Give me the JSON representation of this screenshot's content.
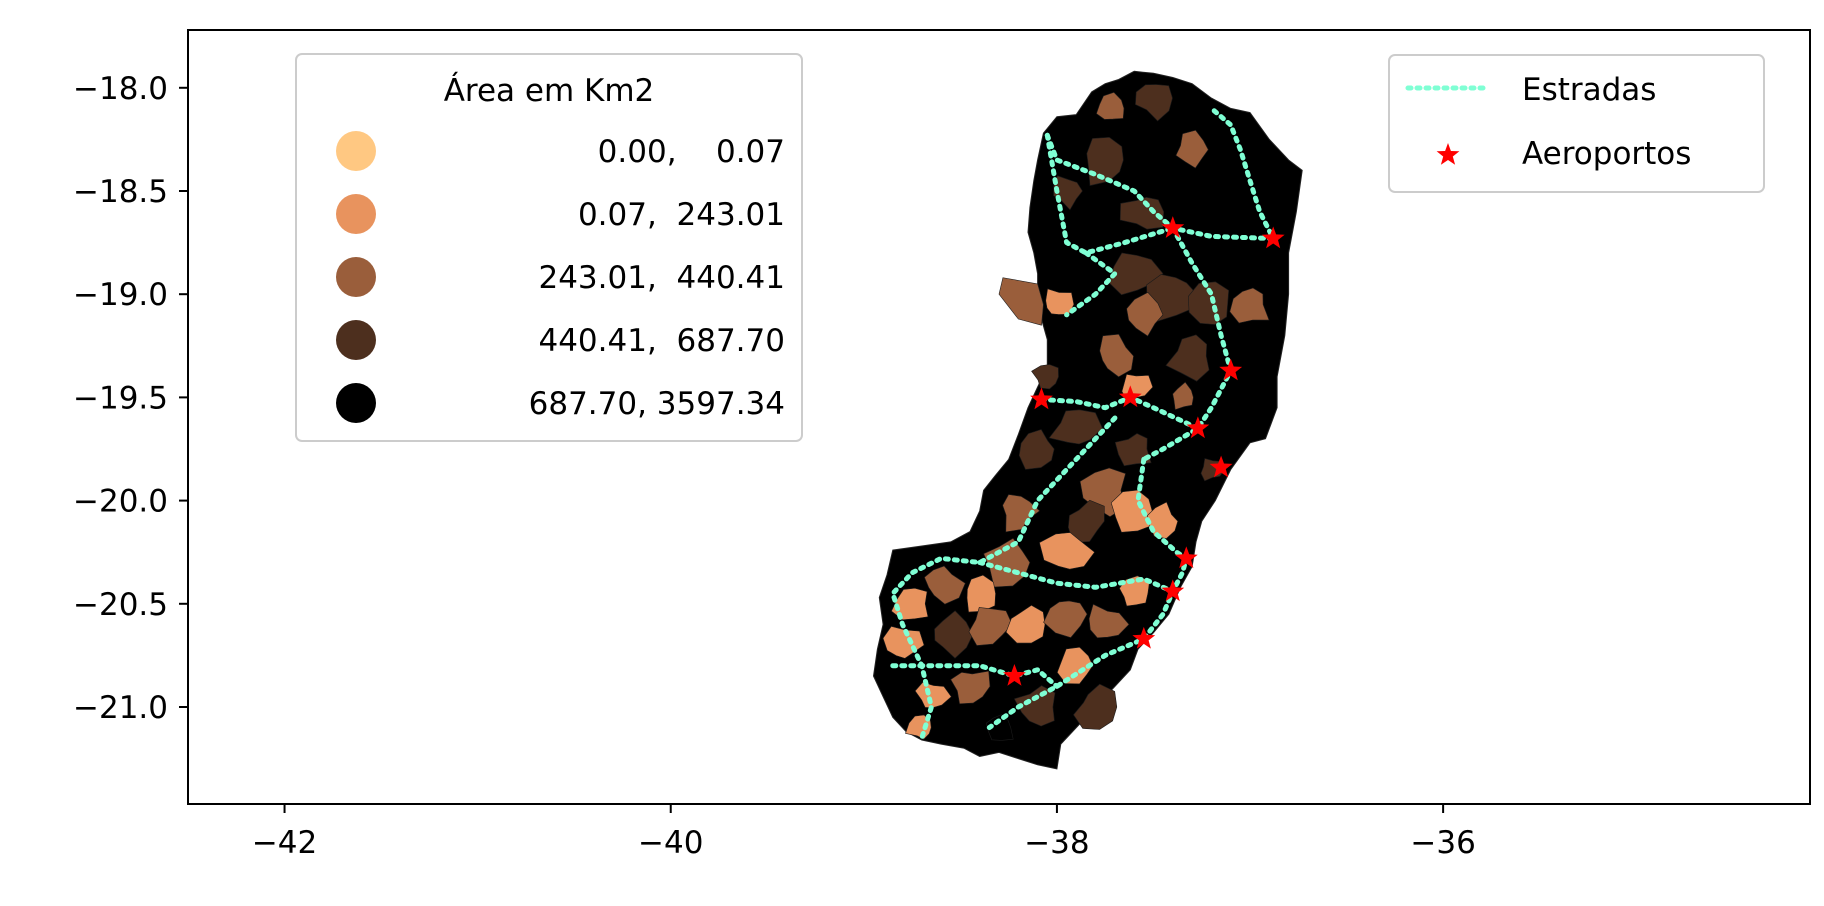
{
  "chart_data": {
    "type": "map",
    "title": "",
    "xlabel": "",
    "ylabel": "",
    "xlim": [
      -42.5,
      -34.1
    ],
    "ylim": [
      -21.47,
      -17.72
    ],
    "grid": false,
    "x_ticks": [
      {
        "value": -42,
        "label": "−42"
      },
      {
        "value": -40,
        "label": "−40"
      },
      {
        "value": -38,
        "label": "−38"
      },
      {
        "value": -36,
        "label": "−36"
      }
    ],
    "y_ticks": [
      {
        "value": -18.0,
        "label": "−18.0"
      },
      {
        "value": -18.5,
        "label": "−18.5"
      },
      {
        "value": -19.0,
        "label": "−19.0"
      },
      {
        "value": -19.5,
        "label": "−19.5"
      },
      {
        "value": -20.0,
        "label": "−20.0"
      },
      {
        "value": -20.5,
        "label": "−20.5"
      },
      {
        "value": -21.0,
        "label": "−21.0"
      }
    ],
    "choropleth_legend": {
      "title": "Área em Km2",
      "placement": "upper-left",
      "classes": [
        {
          "label": "0.00,    0.07",
          "color": "#ffc882"
        },
        {
          "label": "0.07,  243.01",
          "color": "#e8935e"
        },
        {
          "label": "243.01,  440.41",
          "color": "#9a5e3b"
        },
        {
          "label": "440.41,  687.70",
          "color": "#4d2f1e"
        },
        {
          "label": "687.70, 3597.34",
          "color": "#000000"
        }
      ]
    },
    "layers_legend": {
      "placement": "upper-right",
      "items": [
        {
          "label": "Estradas",
          "kind": "dotted-line",
          "color": "#7fffd4"
        },
        {
          "label": "Aeroportos",
          "kind": "star",
          "color": "#ff0000"
        }
      ]
    },
    "airports": [
      {
        "lon": -37.4,
        "lat": -18.68
      },
      {
        "lon": -36.88,
        "lat": -18.73
      },
      {
        "lon": -37.1,
        "lat": -19.37
      },
      {
        "lon": -37.62,
        "lat": -19.5
      },
      {
        "lon": -38.08,
        "lat": -19.51
      },
      {
        "lon": -37.27,
        "lat": -19.65
      },
      {
        "lon": -37.15,
        "lat": -19.84
      },
      {
        "lon": -37.33,
        "lat": -20.28
      },
      {
        "lon": -37.4,
        "lat": -20.44
      },
      {
        "lon": -37.55,
        "lat": -20.67
      },
      {
        "lon": -38.22,
        "lat": -20.85
      }
    ],
    "roads": [
      [
        [
          -38.05,
          -18.23
        ],
        [
          -38.0,
          -18.35
        ],
        [
          -37.8,
          -18.42
        ],
        [
          -37.6,
          -18.5
        ],
        [
          -37.5,
          -18.6
        ],
        [
          -37.4,
          -18.68
        ],
        [
          -37.2,
          -18.72
        ],
        [
          -36.88,
          -18.73
        ],
        [
          -36.95,
          -18.6
        ],
        [
          -37.0,
          -18.45
        ],
        [
          -37.05,
          -18.3
        ],
        [
          -37.1,
          -18.18
        ],
        [
          -37.2,
          -18.1
        ]
      ],
      [
        [
          -38.05,
          -18.23
        ],
        [
          -38.0,
          -18.5
        ],
        [
          -37.95,
          -18.75
        ],
        [
          -37.85,
          -18.8
        ],
        [
          -37.65,
          -18.75
        ],
        [
          -37.4,
          -18.68
        ]
      ],
      [
        [
          -37.4,
          -18.68
        ],
        [
          -37.3,
          -18.85
        ],
        [
          -37.2,
          -19.0
        ],
        [
          -37.15,
          -19.2
        ],
        [
          -37.1,
          -19.37
        ],
        [
          -37.2,
          -19.55
        ],
        [
          -37.27,
          -19.65
        ],
        [
          -37.45,
          -19.75
        ],
        [
          -37.55,
          -19.8
        ]
      ],
      [
        [
          -38.08,
          -19.51
        ],
        [
          -37.9,
          -19.52
        ],
        [
          -37.75,
          -19.55
        ],
        [
          -37.62,
          -19.5
        ],
        [
          -37.5,
          -19.55
        ],
        [
          -37.27,
          -19.65
        ]
      ],
      [
        [
          -37.55,
          -19.8
        ],
        [
          -37.58,
          -20.0
        ],
        [
          -37.5,
          -20.15
        ],
        [
          -37.38,
          -20.25
        ],
        [
          -37.33,
          -20.28
        ],
        [
          -37.35,
          -20.35
        ],
        [
          -37.4,
          -20.44
        ],
        [
          -37.45,
          -20.55
        ],
        [
          -37.55,
          -20.67
        ],
        [
          -37.75,
          -20.75
        ],
        [
          -38.0,
          -20.9
        ],
        [
          -38.2,
          -21.0
        ],
        [
          -38.35,
          -21.1
        ]
      ],
      [
        [
          -37.7,
          -19.6
        ],
        [
          -37.9,
          -19.8
        ],
        [
          -38.1,
          -20.0
        ],
        [
          -38.2,
          -20.2
        ],
        [
          -38.4,
          -20.3
        ],
        [
          -38.6,
          -20.28
        ],
        [
          -38.75,
          -20.35
        ],
        [
          -38.85,
          -20.45
        ],
        [
          -38.8,
          -20.6
        ],
        [
          -38.7,
          -20.8
        ],
        [
          -38.65,
          -21.0
        ],
        [
          -38.7,
          -21.15
        ]
      ],
      [
        [
          -38.4,
          -20.3
        ],
        [
          -38.2,
          -20.35
        ],
        [
          -38.0,
          -20.4
        ],
        [
          -37.8,
          -20.42
        ],
        [
          -37.55,
          -20.38
        ],
        [
          -37.4,
          -20.44
        ]
      ],
      [
        [
          -38.85,
          -20.8
        ],
        [
          -38.6,
          -20.8
        ],
        [
          -38.4,
          -20.8
        ],
        [
          -38.22,
          -20.85
        ],
        [
          -38.1,
          -20.82
        ],
        [
          -38.0,
          -20.9
        ]
      ],
      [
        [
          -37.85,
          -18.8
        ],
        [
          -37.7,
          -18.9
        ],
        [
          -37.8,
          -19.0
        ],
        [
          -37.95,
          -19.1
        ]
      ]
    ]
  }
}
